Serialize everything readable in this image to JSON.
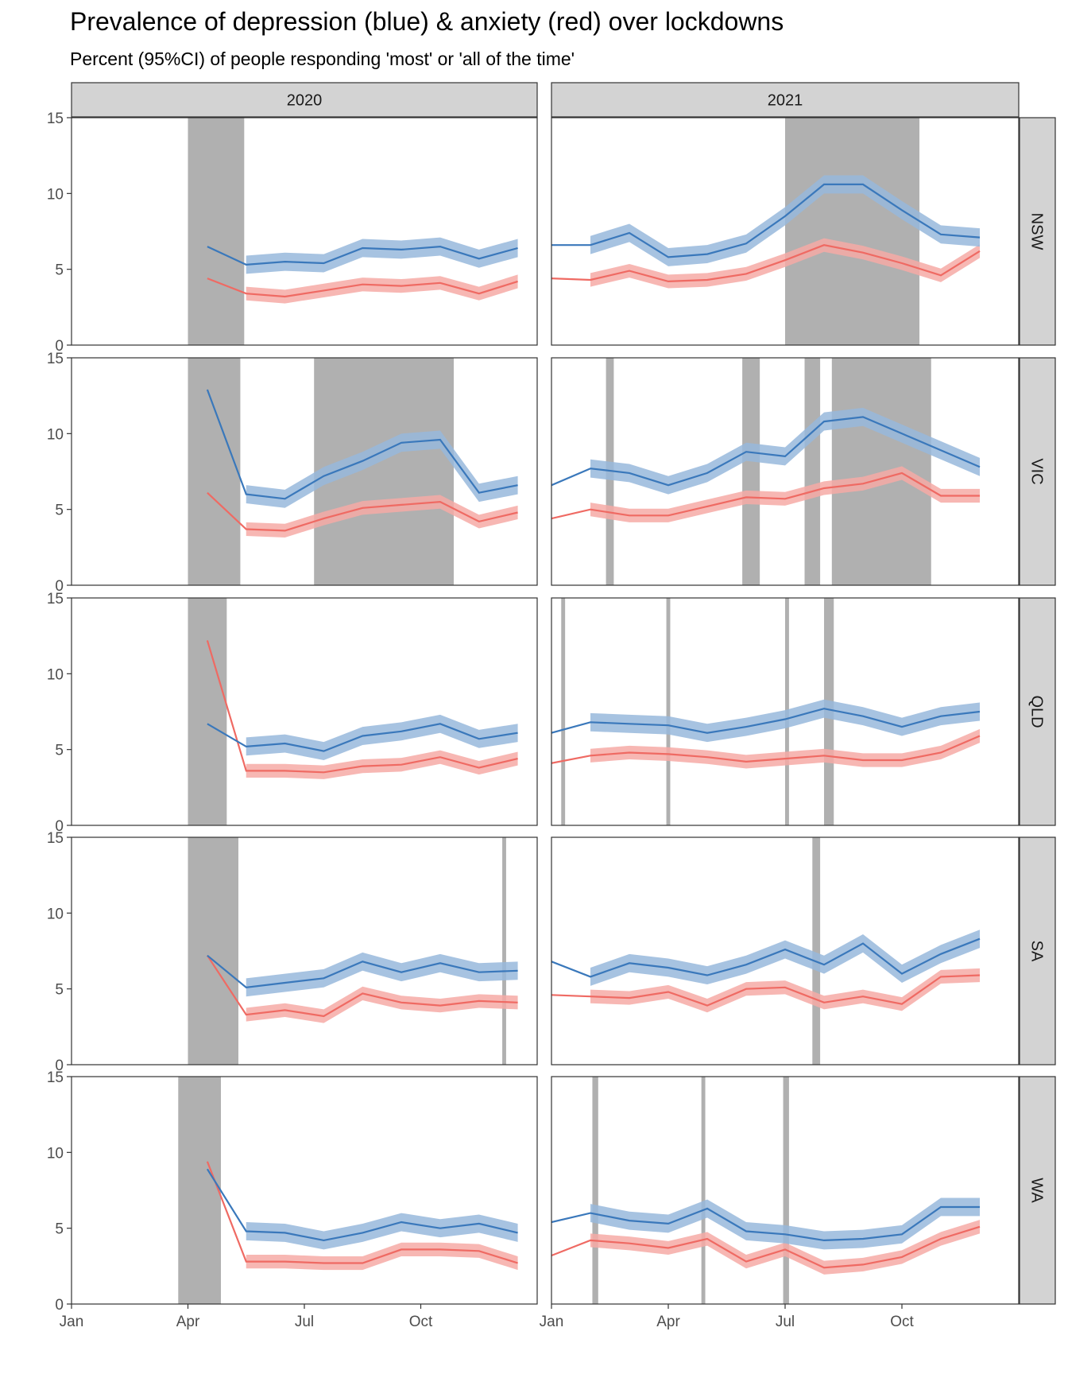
{
  "chart_data": {
    "type": "line",
    "title": "Prevalence of depression (blue) & anxiety (red) over lockdowns",
    "subtitle": "Percent (95%CI) of people responding 'most' or 'all of the time'",
    "xlabel": "",
    "ylabel": "",
    "ylim": [
      0,
      15
    ],
    "yticks": [
      0,
      5,
      10,
      15
    ],
    "columns": [
      "2020",
      "2021"
    ],
    "rows": [
      "NSW",
      "VIC",
      "QLD",
      "SA",
      "WA"
    ],
    "xticks": [
      {
        "label": "Jan",
        "month": 1
      },
      {
        "label": "Apr",
        "month": 4
      },
      {
        "label": "Jul",
        "month": 7
      },
      {
        "label": "Oct",
        "month": 10
      }
    ],
    "colors": {
      "depression": "#3a78bb",
      "depression_band": "#98b9dc",
      "anxiety": "#ef6a63",
      "anxiety_band": "#f6aaa6",
      "lockdown": "#b0b0b0",
      "strip_bg": "#d3d3d3"
    },
    "series_note": "Lockdown periods given as [start_month, end_month] in fractional month units (1 = Jan 1).",
    "panels": {
      "NSW": {
        "2020": {
          "lockdowns": [
            [
              4.0,
              5.45
            ]
          ],
          "depression": [
            [
              4.5,
              6.5
            ],
            [
              5.5,
              5.3
            ],
            [
              6.5,
              5.5
            ],
            [
              7.5,
              5.4
            ],
            [
              8.5,
              6.4
            ],
            [
              9.5,
              6.3
            ],
            [
              10.5,
              6.5
            ],
            [
              11.5,
              5.7
            ],
            [
              12.5,
              6.4
            ]
          ],
          "anxiety": [
            [
              4.5,
              4.4
            ],
            [
              5.5,
              3.4
            ],
            [
              6.5,
              3.2
            ],
            [
              7.5,
              3.6
            ],
            [
              8.5,
              4.0
            ],
            [
              9.5,
              3.9
            ],
            [
              10.5,
              4.1
            ],
            [
              11.5,
              3.4
            ],
            [
              12.5,
              4.2
            ]
          ]
        },
        "2021": {
          "lockdowns": [
            [
              7.0,
              10.45
            ]
          ],
          "depression": [
            [
              1.0,
              6.6
            ],
            [
              2.0,
              6.6
            ],
            [
              3.0,
              7.4
            ],
            [
              4.0,
              5.8
            ],
            [
              5.0,
              6.0
            ],
            [
              6.0,
              6.7
            ],
            [
              7.0,
              8.5
            ],
            [
              8.0,
              10.6
            ],
            [
              9.0,
              10.6
            ],
            [
              10.0,
              8.9
            ],
            [
              11.0,
              7.3
            ],
            [
              12.0,
              7.1
            ]
          ],
          "anxiety": [
            [
              1.0,
              4.4
            ],
            [
              2.0,
              4.3
            ],
            [
              3.0,
              4.9
            ],
            [
              4.0,
              4.2
            ],
            [
              5.0,
              4.3
            ],
            [
              6.0,
              4.7
            ],
            [
              7.0,
              5.6
            ],
            [
              8.0,
              6.6
            ],
            [
              9.0,
              6.1
            ],
            [
              10.0,
              5.4
            ],
            [
              11.0,
              4.6
            ],
            [
              12.0,
              6.2
            ]
          ]
        }
      },
      "VIC": {
        "2020": {
          "lockdowns": [
            [
              4.0,
              5.35
            ],
            [
              7.25,
              10.85
            ]
          ],
          "depression": [
            [
              4.5,
              12.9
            ],
            [
              5.5,
              6.0
            ],
            [
              6.5,
              5.7
            ],
            [
              7.5,
              7.2
            ],
            [
              8.5,
              8.2
            ],
            [
              9.5,
              9.4
            ],
            [
              10.5,
              9.6
            ],
            [
              11.5,
              6.1
            ],
            [
              12.5,
              6.6
            ]
          ],
          "anxiety": [
            [
              4.5,
              6.1
            ],
            [
              5.5,
              3.7
            ],
            [
              6.5,
              3.6
            ],
            [
              7.5,
              4.4
            ],
            [
              8.5,
              5.1
            ],
            [
              9.5,
              5.3
            ],
            [
              10.5,
              5.5
            ],
            [
              11.5,
              4.2
            ],
            [
              12.5,
              4.8
            ]
          ]
        },
        "2021": {
          "lockdowns": [
            [
              2.4,
              2.6
            ],
            [
              5.9,
              6.35
            ],
            [
              7.5,
              7.9
            ],
            [
              8.2,
              10.75
            ]
          ],
          "depression": [
            [
              1.0,
              6.6
            ],
            [
              2.0,
              7.7
            ],
            [
              3.0,
              7.4
            ],
            [
              4.0,
              6.6
            ],
            [
              5.0,
              7.4
            ],
            [
              6.0,
              8.8
            ],
            [
              7.0,
              8.5
            ],
            [
              8.0,
              10.8
            ],
            [
              9.0,
              11.1
            ],
            [
              10.0,
              10.0
            ],
            [
              11.0,
              8.9
            ],
            [
              12.0,
              7.8
            ]
          ],
          "anxiety": [
            [
              1.0,
              4.4
            ],
            [
              2.0,
              5.0
            ],
            [
              3.0,
              4.6
            ],
            [
              4.0,
              4.6
            ],
            [
              5.0,
              5.2
            ],
            [
              6.0,
              5.8
            ],
            [
              7.0,
              5.7
            ],
            [
              8.0,
              6.4
            ],
            [
              9.0,
              6.7
            ],
            [
              10.0,
              7.4
            ],
            [
              11.0,
              5.9
            ],
            [
              12.0,
              5.9
            ]
          ]
        }
      },
      "QLD": {
        "2020": {
          "lockdowns": [
            [
              4.0,
              5.0
            ]
          ],
          "depression": [
            [
              4.5,
              6.7
            ],
            [
              5.5,
              5.2
            ],
            [
              6.5,
              5.4
            ],
            [
              7.5,
              4.9
            ],
            [
              8.5,
              5.9
            ],
            [
              9.5,
              6.2
            ],
            [
              10.5,
              6.7
            ],
            [
              11.5,
              5.7
            ],
            [
              12.5,
              6.1
            ]
          ],
          "anxiety": [
            [
              4.5,
              12.2
            ],
            [
              5.5,
              3.6
            ],
            [
              6.5,
              3.6
            ],
            [
              7.5,
              3.5
            ],
            [
              8.5,
              3.9
            ],
            [
              9.5,
              4.0
            ],
            [
              10.5,
              4.5
            ],
            [
              11.5,
              3.8
            ],
            [
              12.5,
              4.4
            ]
          ]
        },
        "2021": {
          "lockdowns": [
            [
              1.25,
              1.35
            ],
            [
              3.95,
              4.05
            ],
            [
              7.0,
              7.1
            ],
            [
              8.0,
              8.25
            ]
          ],
          "depression": [
            [
              1.0,
              6.1
            ],
            [
              2.0,
              6.8
            ],
            [
              3.0,
              6.7
            ],
            [
              4.0,
              6.6
            ],
            [
              5.0,
              6.1
            ],
            [
              6.0,
              6.5
            ],
            [
              7.0,
              7.0
            ],
            [
              8.0,
              7.7
            ],
            [
              9.0,
              7.2
            ],
            [
              10.0,
              6.5
            ],
            [
              11.0,
              7.2
            ],
            [
              12.0,
              7.5
            ]
          ],
          "anxiety": [
            [
              1.0,
              4.1
            ],
            [
              2.0,
              4.6
            ],
            [
              3.0,
              4.8
            ],
            [
              4.0,
              4.7
            ],
            [
              5.0,
              4.5
            ],
            [
              6.0,
              4.2
            ],
            [
              7.0,
              4.4
            ],
            [
              8.0,
              4.6
            ],
            [
              9.0,
              4.3
            ],
            [
              10.0,
              4.3
            ],
            [
              11.0,
              4.8
            ],
            [
              12.0,
              5.9
            ]
          ]
        }
      },
      "SA": {
        "2020": {
          "lockdowns": [
            [
              4.0,
              5.3
            ],
            [
              12.1,
              12.2
            ]
          ],
          "depression": [
            [
              4.5,
              7.2
            ],
            [
              5.5,
              5.1
            ],
            [
              6.5,
              5.4
            ],
            [
              7.5,
              5.7
            ],
            [
              8.5,
              6.8
            ],
            [
              9.5,
              6.1
            ],
            [
              10.5,
              6.7
            ],
            [
              11.5,
              6.1
            ],
            [
              12.5,
              6.2
            ]
          ],
          "anxiety": [
            [
              4.5,
              7.2
            ],
            [
              5.5,
              3.3
            ],
            [
              6.5,
              3.6
            ],
            [
              7.5,
              3.2
            ],
            [
              8.5,
              4.7
            ],
            [
              9.5,
              4.1
            ],
            [
              10.5,
              3.9
            ],
            [
              11.5,
              4.2
            ],
            [
              12.5,
              4.1
            ]
          ]
        },
        "2021": {
          "lockdowns": [
            [
              7.7,
              7.9
            ]
          ],
          "depression": [
            [
              1.0,
              6.8
            ],
            [
              2.0,
              5.8
            ],
            [
              3.0,
              6.7
            ],
            [
              4.0,
              6.4
            ],
            [
              5.0,
              5.9
            ],
            [
              6.0,
              6.6
            ],
            [
              7.0,
              7.6
            ],
            [
              8.0,
              6.6
            ],
            [
              9.0,
              8.0
            ],
            [
              10.0,
              6.0
            ],
            [
              11.0,
              7.3
            ],
            [
              12.0,
              8.3
            ]
          ],
          "anxiety": [
            [
              1.0,
              4.6
            ],
            [
              2.0,
              4.5
            ],
            [
              3.0,
              4.4
            ],
            [
              4.0,
              4.8
            ],
            [
              5.0,
              3.9
            ],
            [
              6.0,
              5.0
            ],
            [
              7.0,
              5.1
            ],
            [
              8.0,
              4.1
            ],
            [
              9.0,
              4.5
            ],
            [
              10.0,
              4.0
            ],
            [
              11.0,
              5.8
            ],
            [
              12.0,
              5.9
            ]
          ]
        }
      },
      "WA": {
        "2020": {
          "lockdowns": [
            [
              3.75,
              4.85
            ]
          ],
          "depression": [
            [
              4.5,
              8.9
            ],
            [
              5.5,
              4.8
            ],
            [
              6.5,
              4.7
            ],
            [
              7.5,
              4.2
            ],
            [
              8.5,
              4.7
            ],
            [
              9.5,
              5.4
            ],
            [
              10.5,
              5.0
            ],
            [
              11.5,
              5.3
            ],
            [
              12.5,
              4.7
            ]
          ],
          "anxiety": [
            [
              4.5,
              9.4
            ],
            [
              5.5,
              2.8
            ],
            [
              6.5,
              2.8
            ],
            [
              7.5,
              2.7
            ],
            [
              8.5,
              2.7
            ],
            [
              9.5,
              3.6
            ],
            [
              10.5,
              3.6
            ],
            [
              11.5,
              3.5
            ],
            [
              12.5,
              2.7
            ]
          ]
        },
        "2021": {
          "lockdowns": [
            [
              2.05,
              2.2
            ],
            [
              4.85,
              4.95
            ],
            [
              6.95,
              7.1
            ]
          ],
          "depression": [
            [
              1.0,
              5.4
            ],
            [
              2.0,
              6.0
            ],
            [
              3.0,
              5.5
            ],
            [
              4.0,
              5.3
            ],
            [
              5.0,
              6.3
            ],
            [
              6.0,
              4.8
            ],
            [
              7.0,
              4.6
            ],
            [
              8.0,
              4.2
            ],
            [
              9.0,
              4.3
            ],
            [
              10.0,
              4.6
            ],
            [
              11.0,
              6.4
            ],
            [
              12.0,
              6.4
            ]
          ],
          "anxiety": [
            [
              1.0,
              3.2
            ],
            [
              2.0,
              4.2
            ],
            [
              3.0,
              4.0
            ],
            [
              4.0,
              3.7
            ],
            [
              5.0,
              4.3
            ],
            [
              6.0,
              2.8
            ],
            [
              7.0,
              3.6
            ],
            [
              8.0,
              2.4
            ],
            [
              9.0,
              2.6
            ],
            [
              10.0,
              3.1
            ],
            [
              11.0,
              4.3
            ],
            [
              12.0,
              5.1
            ]
          ]
        }
      }
    },
    "ci_halfwidth": {
      "depression": 0.6,
      "anxiety": 0.45
    },
    "legend": "none",
    "grid": false
  }
}
